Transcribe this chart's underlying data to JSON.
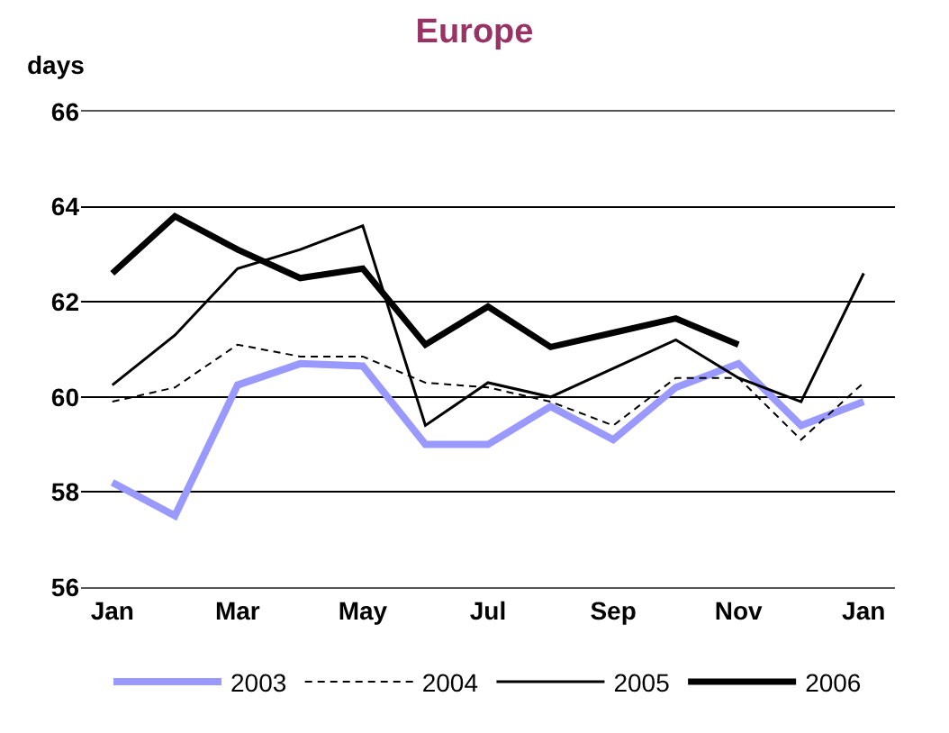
{
  "chart_data": {
    "type": "line",
    "title": "Europe",
    "ylabel": "days",
    "categories": [
      "Jan",
      null,
      "Mar",
      null,
      "May",
      null,
      "Jul",
      null,
      "Sep",
      null,
      "Nov",
      null,
      "Jan"
    ],
    "series": [
      {
        "name": "2003",
        "color": "#9999ff",
        "values": [
          58.2,
          57.5,
          60.25,
          60.7,
          60.65,
          59.0,
          59.0,
          59.8,
          59.1,
          60.2,
          60.7,
          59.4,
          59.9
        ]
      },
      {
        "name": "2004",
        "color": "#000000",
        "line_style": "dashed",
        "values": [
          59.9,
          60.2,
          61.1,
          60.85,
          60.85,
          60.3,
          60.2,
          59.9,
          59.4,
          60.4,
          60.4,
          59.1,
          60.3
        ]
      },
      {
        "name": "2005",
        "color": "#000000",
        "values": [
          60.25,
          61.3,
          62.7,
          63.1,
          63.6,
          59.4,
          60.3,
          60.0,
          60.6,
          61.2,
          60.4,
          59.9,
          62.6
        ]
      },
      {
        "name": "2006",
        "color": "#000000",
        "values": [
          62.6,
          63.8,
          63.1,
          62.5,
          62.7,
          61.1,
          61.9,
          61.05,
          61.35,
          61.65,
          61.1,
          null,
          null
        ]
      }
    ],
    "ylim": [
      56,
      66
    ],
    "yticks": [
      56,
      58,
      60,
      62,
      64,
      66
    ],
    "grid": "y",
    "legend": "bottom",
    "marker": "none",
    "line_style": "solid"
  }
}
